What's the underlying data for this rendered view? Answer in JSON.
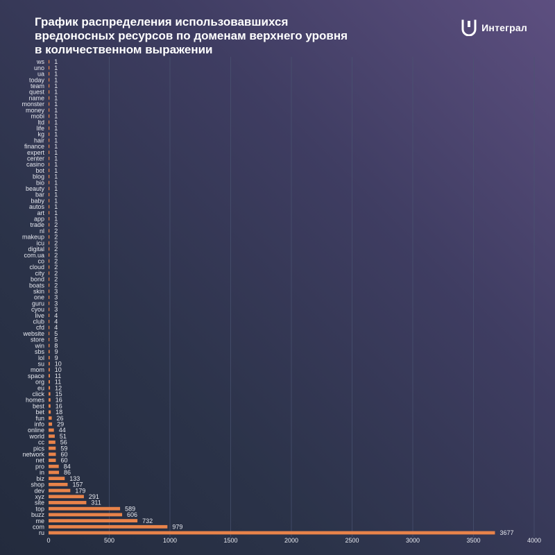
{
  "header": {
    "title": "График распределения использовавшихся\nвредоносных ресурсов по доменам верхнего уровня\nв количественном выражении",
    "logo_text": "Интеграл",
    "logo_icon": "integral-logo-icon"
  },
  "colors": {
    "bar": "#e8834a",
    "grid": "#4a5572",
    "text": "#e6e8ef"
  },
  "chart_data": {
    "type": "bar",
    "orientation": "horizontal",
    "title": "График распределения использовавшихся вредоносных ресурсов по доменам верхнего уровня в количественном выражении",
    "xlim": [
      0,
      4000
    ],
    "xticks": [
      0,
      500,
      1000,
      1500,
      2000,
      2500,
      3000,
      3500,
      4000
    ],
    "grid": "vertical",
    "categories": [
      "ws",
      "uno",
      "ua",
      "today",
      "team",
      "quest",
      "name",
      "monster",
      "money",
      "mobi",
      "ltd",
      "life",
      "kg",
      "hair",
      "finance",
      "expert",
      "center",
      "casino",
      "bot",
      "blog",
      "bio",
      "beauty",
      "bar",
      "baby",
      "autos",
      "art",
      "app",
      "trade",
      "nl",
      "makeup",
      "icu",
      "digital",
      "com.ua",
      "co",
      "cloud",
      "city",
      "bond",
      "boats",
      "skin",
      "one",
      "guru",
      "cyou",
      "live",
      "club",
      "cfd",
      "website",
      "store",
      "win",
      "sbs",
      "lol",
      "su",
      "mom",
      "space",
      "org",
      "eu",
      "click",
      "homes",
      "best",
      "bet",
      "fun",
      "info",
      "online",
      "world",
      "cc",
      "pics",
      "network",
      "net",
      "pro",
      "in",
      "biz",
      "shop",
      "dev",
      "xyz",
      "site",
      "top",
      "buzz",
      "me",
      "com",
      "ru"
    ],
    "values": [
      1,
      1,
      1,
      1,
      1,
      1,
      1,
      1,
      1,
      1,
      1,
      1,
      1,
      1,
      1,
      1,
      1,
      1,
      1,
      1,
      1,
      1,
      1,
      1,
      1,
      1,
      1,
      2,
      2,
      2,
      2,
      2,
      2,
      2,
      2,
      2,
      2,
      2,
      3,
      3,
      3,
      3,
      4,
      4,
      4,
      5,
      5,
      8,
      9,
      9,
      10,
      10,
      11,
      11,
      12,
      15,
      16,
      16,
      18,
      26,
      29,
      44,
      51,
      56,
      59,
      60,
      60,
      84,
      86,
      133,
      157,
      179,
      291,
      311,
      589,
      606,
      732,
      979,
      3677
    ]
  }
}
